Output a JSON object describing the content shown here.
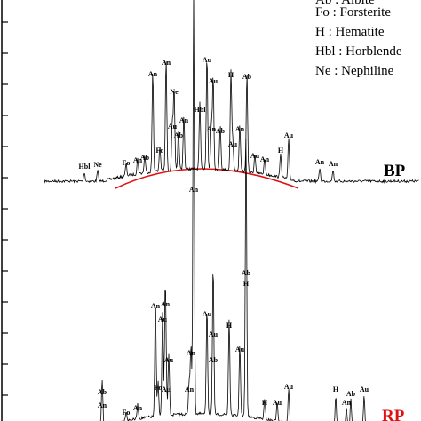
{
  "legend": [
    "Ab : Albite",
    "Fo : Forsterite",
    "H :  Hematite",
    "Hbl : Horblende",
    "Ne : Nephiline"
  ],
  "samples": [
    "BP",
    "RP"
  ],
  "bp_peaks": [
    "An",
    "An",
    "Au",
    "Au",
    "Ne",
    "H",
    "Ab",
    "Hbl",
    "An",
    "Au",
    "Ab",
    "Fo",
    "An",
    "Ab",
    "An",
    "Au",
    "Au",
    "H",
    "Au",
    "An",
    "Hbl",
    "Ne",
    "Fo",
    "An",
    "Ab",
    "An",
    "An"
  ],
  "rp_peaks": [
    "An",
    "Ab",
    "H",
    "An",
    "An",
    "Au",
    "Au",
    "Au",
    "H",
    "An",
    "Au",
    "Au",
    "Ab",
    "Ab",
    "An",
    "Fo",
    "Au",
    "An",
    "Au",
    "H",
    "Ab",
    "Au",
    "An",
    "Fo",
    "An",
    "H",
    "Au"
  ]
}
